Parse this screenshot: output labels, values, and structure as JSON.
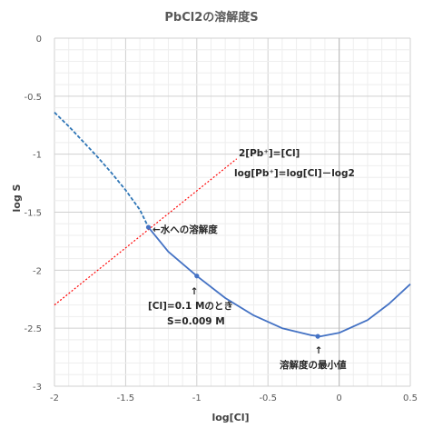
{
  "chart_data": {
    "type": "line",
    "title": "PbCl2の溶解度S",
    "xlabel": "log[Cl]",
    "ylabel": "log S",
    "xlim": [
      -2,
      0.5
    ],
    "ylim": [
      -3,
      0
    ],
    "x_ticks": [
      "-2",
      "-1.5",
      "-1",
      "-0.5",
      "0",
      "0.5"
    ],
    "y_ticks": [
      "0",
      "-0.5",
      "-1",
      "-1.5",
      "-2",
      "-2.5",
      "-3"
    ],
    "grid": true,
    "series": [
      {
        "style": "dashed",
        "color": "#2e75b6",
        "x": [
          -2.0,
          -1.9,
          -1.8,
          -1.7,
          -1.6,
          -1.5,
          -1.4,
          -1.34
        ],
        "y": [
          -0.64,
          -0.76,
          -0.89,
          -1.02,
          -1.16,
          -1.31,
          -1.48,
          -1.63
        ]
      },
      {
        "style": "solid",
        "color": "#4472c4",
        "x": [
          -1.34,
          -1.2,
          -1.0,
          -0.8,
          -0.6,
          -0.4,
          -0.2,
          -0.13,
          0.0,
          0.2,
          0.35,
          0.5
        ],
        "y": [
          -1.63,
          -1.84,
          -2.05,
          -2.24,
          -2.39,
          -2.5,
          -2.56,
          -2.57,
          -2.54,
          -2.43,
          -2.29,
          -2.12
        ]
      },
      {
        "style": "dotted",
        "color": "#ff0000",
        "x": [
          -2.0,
          -0.72
        ],
        "y": [
          -2.3,
          -1.04
        ]
      }
    ],
    "points": [
      {
        "x": -1.34,
        "y": -1.63
      },
      {
        "x": -1.0,
        "y": -2.05
      },
      {
        "x": -0.15,
        "y": -2.57
      }
    ],
    "annotations": {
      "line_eq_1": "2[Pb⁺]=[Cl]",
      "line_eq_2": "log[Pb⁺]=log[Cl]－log2",
      "water": "←水への溶解度",
      "cl_arrow": "↑",
      "cl_label_1": "[Cl]=0.1 Mのとき",
      "cl_label_2": "S=0.009 M",
      "min_arrow": "↑",
      "min_label": "溶解度の最小値"
    }
  }
}
